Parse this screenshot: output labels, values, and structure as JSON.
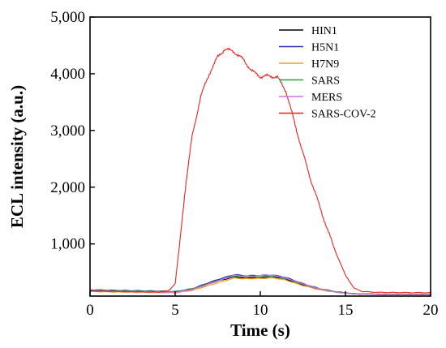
{
  "chart_data": {
    "type": "line",
    "xlabel": "Time (s)",
    "ylabel": "ECL intensity (a.u.)",
    "xlim": [
      0,
      20
    ],
    "ylim": [
      80,
      5000
    ],
    "x_ticks": [
      {
        "value": 0,
        "label": "0"
      },
      {
        "value": 5,
        "label": "5"
      },
      {
        "value": 10,
        "label": "10"
      },
      {
        "value": 15,
        "label": "15"
      },
      {
        "value": 20,
        "label": "20"
      }
    ],
    "y_ticks": [
      {
        "value": 1000,
        "label": "1,000"
      },
      {
        "value": 2000,
        "label": "2,000"
      },
      {
        "value": 3000,
        "label": "3,000"
      },
      {
        "value": 4000,
        "label": "4,000"
      },
      {
        "value": 5000,
        "label": "5,000"
      }
    ],
    "grid": false,
    "legend_position": "top-right",
    "series": [
      {
        "name": "HIN1",
        "color": "#000000",
        "x": [
          0,
          2,
          4,
          5,
          6,
          7,
          7.8,
          8.5,
          9,
          10,
          10.8,
          11.5,
          12.5,
          13.5,
          14.5,
          15.5,
          17,
          20
        ],
        "y": [
          175,
          165,
          158,
          152,
          200,
          300,
          370,
          420,
          400,
          410,
          420,
          380,
          280,
          200,
          150,
          120,
          112,
          110
        ]
      },
      {
        "name": "H5N1",
        "color": "#1f2fb0",
        "x": [
          0,
          2,
          4,
          5,
          6,
          7,
          7.8,
          8.5,
          9,
          10,
          10.8,
          11.5,
          12.5,
          13.5,
          14.5,
          15.5,
          17,
          20
        ],
        "y": [
          190,
          178,
          168,
          160,
          210,
          320,
          400,
          460,
          440,
          445,
          450,
          410,
          300,
          210,
          155,
          120,
          110,
          108
        ]
      },
      {
        "name": "H7N9",
        "color": "#f0a020",
        "x": [
          0,
          2,
          4,
          5,
          6,
          7,
          7.8,
          8.5,
          9,
          10,
          10.8,
          11.5,
          12.5,
          13.5,
          14.5,
          15.5,
          17,
          20
        ],
        "y": [
          160,
          150,
          142,
          138,
          180,
          270,
          340,
          400,
          385,
          390,
          400,
          360,
          265,
          190,
          145,
          118,
          108,
          105
        ]
      },
      {
        "name": "SARS",
        "color": "#20a040",
        "x": [
          0,
          2,
          4,
          5,
          6,
          7,
          7.8,
          8.5,
          9,
          10,
          10.8,
          11.5,
          12.5,
          13.5,
          14.5,
          15.5,
          17,
          20
        ],
        "y": [
          180,
          170,
          162,
          156,
          205,
          305,
          380,
          435,
          415,
          420,
          430,
          390,
          290,
          205,
          152,
          122,
          112,
          110
        ]
      },
      {
        "name": "MERS",
        "color": "#d070e0",
        "x": [
          0,
          2,
          4,
          5,
          6,
          7,
          7.8,
          8.5,
          9,
          10,
          10.8,
          11.5,
          12.5,
          13.5,
          14.5,
          15.5,
          17,
          20
        ],
        "y": [
          170,
          160,
          152,
          148,
          195,
          295,
          375,
          450,
          430,
          440,
          445,
          400,
          295,
          205,
          150,
          120,
          110,
          106
        ]
      },
      {
        "name": "SARS-COV-2",
        "color": "#e8231f",
        "x": [
          0,
          2,
          4,
          4.6,
          5.0,
          5.3,
          5.6,
          6.0,
          6.5,
          7.0,
          7.5,
          7.9,
          8.4,
          9.0,
          9.5,
          10.0,
          10.5,
          11.0,
          11.5,
          12.0,
          12.5,
          13.0,
          13.5,
          14.0,
          14.5,
          15.0,
          15.5,
          16.0,
          17.0,
          20.0
        ],
        "y": [
          170,
          160,
          150,
          170,
          300,
          1100,
          2000,
          2900,
          3600,
          4000,
          4300,
          4430,
          4400,
          4250,
          4050,
          3950,
          3960,
          3940,
          3700,
          3150,
          2600,
          2100,
          1650,
          1200,
          800,
          450,
          220,
          160,
          145,
          140
        ]
      }
    ]
  }
}
